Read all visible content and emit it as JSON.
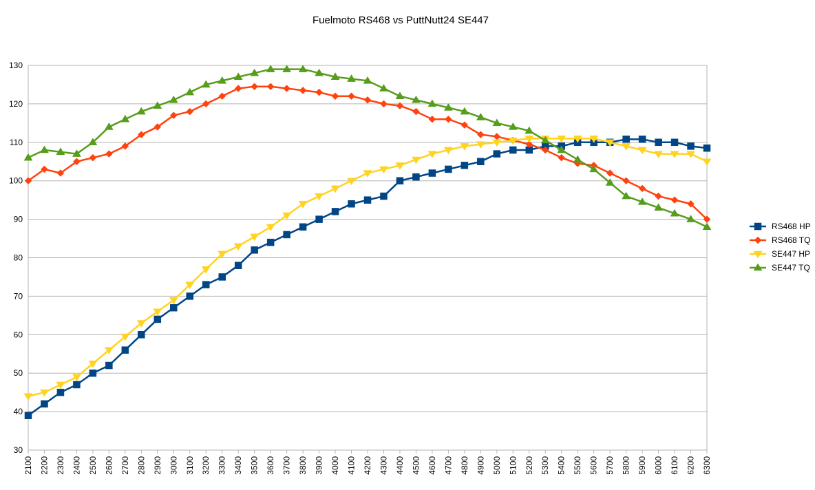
{
  "chart_data": {
    "type": "line",
    "title": "Fuelmoto RS468 vs PuttNutt24 SE447",
    "xlabel": "",
    "ylabel": "",
    "ylim": [
      30,
      130
    ],
    "yticks": [
      30,
      40,
      50,
      60,
      70,
      80,
      90,
      100,
      110,
      120,
      130
    ],
    "grid": true,
    "legend_position": "right",
    "categories": [
      "2100",
      "2200",
      "2300",
      "2400",
      "2500",
      "2600",
      "2700",
      "2800",
      "2900",
      "3000",
      "3100",
      "3200",
      "3300",
      "3400",
      "3500",
      "3600",
      "3700",
      "3800",
      "3900",
      "4000",
      "4100",
      "4200",
      "4300",
      "4400",
      "4500",
      "4600",
      "4700",
      "4800",
      "4900",
      "5000",
      "5100",
      "5200",
      "5300",
      "5400",
      "5500",
      "5600",
      "5700",
      "5800",
      "5900",
      "6000",
      "6100",
      "6200",
      "6300"
    ],
    "series": [
      {
        "name": "RS468 HP",
        "color": "#004586",
        "marker": "square",
        "values": [
          39,
          42,
          45,
          47,
          50,
          52,
          56,
          60,
          64,
          67,
          70,
          73,
          75,
          78,
          82,
          84,
          86,
          88,
          90,
          92,
          94,
          95,
          96,
          100,
          101,
          102,
          103,
          104,
          105,
          107,
          108,
          108,
          109,
          109,
          110,
          110,
          110,
          110.8,
          110.8,
          110,
          110,
          109,
          108.5
        ]
      },
      {
        "name": "RS468 TQ",
        "color": "#ff420e",
        "marker": "diamond",
        "values": [
          100,
          103,
          102,
          105,
          106,
          107,
          109,
          112,
          114,
          117,
          118,
          120,
          122,
          124,
          124.5,
          124.5,
          124,
          123.5,
          123,
          122,
          122,
          121,
          120,
          119.5,
          118,
          116,
          116,
          114.5,
          112,
          111.5,
          110.5,
          109.5,
          108,
          106,
          104.5,
          104,
          102,
          100,
          98,
          96,
          95,
          94,
          90
        ]
      },
      {
        "name": "SE447 HP",
        "color": "#ffd320",
        "marker": "triangle-down",
        "values": [
          44,
          45,
          47,
          49,
          52.5,
          56,
          59.5,
          63,
          66,
          69,
          73,
          77,
          81,
          83,
          85.5,
          88,
          91,
          94,
          96,
          98,
          100,
          102,
          103,
          104,
          105.5,
          107,
          108,
          109,
          109.5,
          110,
          110.5,
          111,
          111,
          111,
          111,
          111,
          110,
          109,
          108,
          107,
          107,
          107,
          105
        ]
      },
      {
        "name": "SE447 TQ",
        "color": "#579d1c",
        "marker": "triangle-up",
        "values": [
          106,
          108,
          107.5,
          107,
          110,
          114,
          116,
          118,
          119.5,
          121,
          123,
          125,
          126,
          127,
          128,
          129,
          129,
          129,
          128,
          127,
          126.5,
          126,
          124,
          122,
          121,
          120,
          119,
          118,
          116.5,
          115,
          114,
          113,
          110.5,
          108,
          105.5,
          103,
          99.5,
          96,
          94.5,
          93,
          91.5,
          90,
          88
        ]
      }
    ]
  }
}
